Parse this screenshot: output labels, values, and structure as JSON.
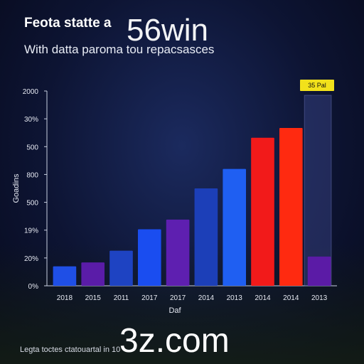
{
  "header": {
    "title": "Feota statte a",
    "subtitle": "With datta paroma tou repacsasces"
  },
  "watermark": {
    "top": "56win",
    "bottom": "3z.com"
  },
  "footer": {
    "text": "Legta toctes ctatouartal in 10"
  },
  "badge": {
    "label": "35 Pal",
    "color": "#f2e11b"
  },
  "chart_data": {
    "type": "bar",
    "title": "Feota statte a",
    "subtitle": "With datta paroma tou repacsasces",
    "ylabel": "Goadins",
    "xlabel": "Daf",
    "y_tick_labels": [
      "0%",
      "20%",
      "19%",
      "500",
      "800",
      "500",
      "30%",
      "2000"
    ],
    "categories": [
      "2018",
      "2015",
      "2011",
      "2017",
      "2017",
      "2014",
      "2013",
      "2014",
      "2014",
      "2013"
    ],
    "values": [
      1.0,
      1.2,
      1.8,
      2.9,
      3.4,
      5.0,
      6.0,
      7.6,
      8.1,
      1.5
    ],
    "colors": [
      "#1f4fe6",
      "#5a1ca8",
      "#1e43c2",
      "#1a4df0",
      "#5e1fb0",
      "#1c3fb8",
      "#1f5ff2",
      "#f21a1a",
      "#ff2a10",
      "#5b1ba6"
    ],
    "ylim": [
      0,
      10
    ],
    "grid": false,
    "highlight_column": "2013"
  }
}
